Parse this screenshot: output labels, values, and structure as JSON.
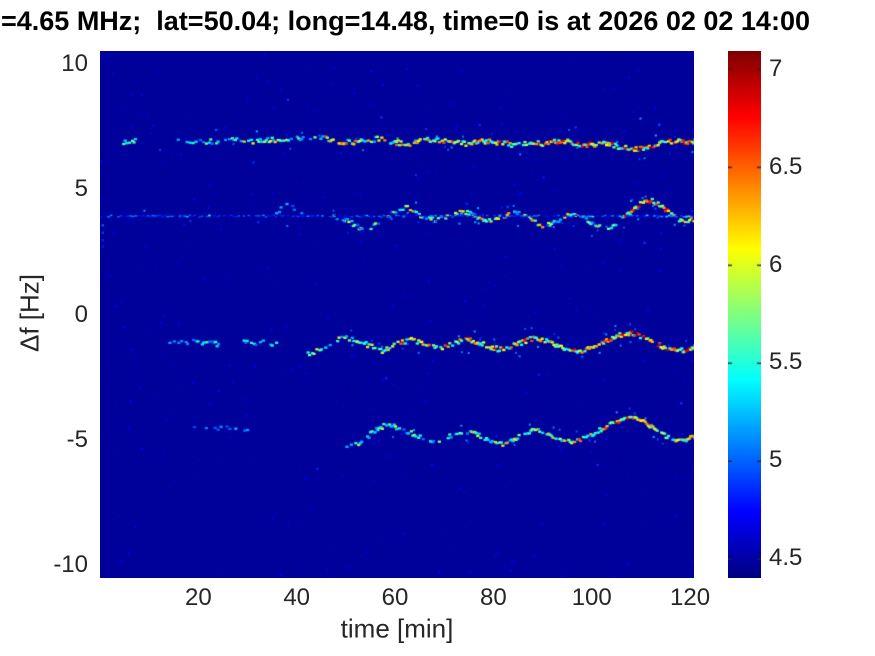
{
  "chart_data": {
    "type": "heatmap",
    "title": "=4.65 MHz;  lat=50.04; long=14.48, time=0 is at 2026 02 02 14:00",
    "xlabel": "time [min]",
    "ylabel": "Δf [Hz]",
    "xlim": [
      0,
      120.8
    ],
    "ylim": [
      -10.5,
      10.5
    ],
    "xticks": [
      20,
      40,
      60,
      80,
      100,
      120
    ],
    "yticks": [
      10,
      5,
      0,
      -5,
      -10
    ],
    "grid": false,
    "legend": "none",
    "colormap": "jet",
    "colorbar": {
      "vmin": 4.4,
      "vmax": 7.09,
      "ticks": [
        7,
        6.5,
        6,
        5.5,
        5,
        4.5
      ]
    },
    "background_value": 4.47,
    "traces": [
      {
        "name": "trace-plus7Hz",
        "step": 0.3,
        "jitter": 2.4,
        "dash": [
          3.2,
          2.3
        ],
        "points": [
          [
            4.5,
            6.85
          ],
          [
            6,
            6.9
          ],
          [
            8,
            6.9
          ],
          [
            16,
            6.95
          ],
          [
            18,
            6.85
          ],
          [
            23,
            6.9
          ],
          [
            26,
            6.95
          ],
          [
            30,
            6.9
          ],
          [
            34,
            6.95
          ],
          [
            38,
            7.0
          ],
          [
            42,
            7.05
          ],
          [
            45,
            7.08
          ],
          [
            48,
            6.9
          ],
          [
            51,
            6.85
          ],
          [
            54,
            6.95
          ],
          [
            57,
            7.0
          ],
          [
            60,
            6.85
          ],
          [
            63,
            6.8
          ],
          [
            66,
            6.95
          ],
          [
            69,
            6.95
          ],
          [
            72,
            6.85
          ],
          [
            75,
            6.8
          ],
          [
            78,
            6.9
          ],
          [
            81,
            6.85
          ],
          [
            84,
            6.75
          ],
          [
            87,
            6.85
          ],
          [
            90,
            6.8
          ],
          [
            93,
            6.9
          ],
          [
            96,
            6.85
          ],
          [
            99,
            6.75
          ],
          [
            102,
            6.8
          ],
          [
            105,
            6.7
          ],
          [
            108,
            6.6
          ],
          [
            111,
            6.65
          ],
          [
            113,
            6.8
          ],
          [
            115,
            6.9
          ],
          [
            117,
            6.9
          ],
          [
            119,
            6.85
          ],
          [
            120.8,
            6.9
          ]
        ],
        "segments": [
          [
            4.5,
            7,
            0.5,
            5.1,
            5.7
          ],
          [
            15,
            26,
            0.45,
            5.0,
            5.8
          ],
          [
            26,
            45,
            0.6,
            5.1,
            6.2
          ],
          [
            45,
            60,
            0.75,
            5.2,
            6.6
          ],
          [
            60,
            78,
            0.8,
            5.3,
            6.7
          ],
          [
            78,
            100,
            0.85,
            5.4,
            6.9
          ],
          [
            100,
            120.8,
            0.95,
            5.5,
            7.05
          ]
        ]
      },
      {
        "name": "trace-plus4Hz-wavy",
        "step": 0.3,
        "jitter": 2.2,
        "dash": [
          3.2,
          2.3
        ],
        "points": [
          [
            33,
            3.95
          ],
          [
            36,
            4.1
          ],
          [
            38,
            4.45
          ],
          [
            40,
            4.1
          ],
          [
            42,
            3.95
          ],
          [
            47,
            3.9
          ],
          [
            50,
            3.75
          ],
          [
            52,
            3.5
          ],
          [
            54,
            3.35
          ],
          [
            56,
            3.6
          ],
          [
            58,
            3.9
          ],
          [
            60,
            4.15
          ],
          [
            62,
            4.3
          ],
          [
            64,
            4.05
          ],
          [
            66,
            3.85
          ],
          [
            68,
            3.75
          ],
          [
            70,
            3.9
          ],
          [
            72,
            4.05
          ],
          [
            74,
            4.1
          ],
          [
            76,
            3.9
          ],
          [
            78,
            3.7
          ],
          [
            80,
            3.75
          ],
          [
            82,
            3.95
          ],
          [
            84,
            4.1
          ],
          [
            86,
            3.95
          ],
          [
            88,
            3.7
          ],
          [
            90,
            3.5
          ],
          [
            92,
            3.65
          ],
          [
            94,
            3.9
          ],
          [
            96,
            4.0
          ],
          [
            98,
            3.85
          ],
          [
            100,
            3.6
          ],
          [
            102,
            3.4
          ],
          [
            104,
            3.5
          ],
          [
            106,
            3.8
          ],
          [
            108,
            4.15
          ],
          [
            110,
            4.45
          ],
          [
            112,
            4.55
          ],
          [
            114,
            4.3
          ],
          [
            116,
            3.95
          ],
          [
            118,
            3.7
          ],
          [
            120.8,
            3.8
          ]
        ],
        "segments": [
          [
            35,
            41,
            0.4,
            4.9,
            5.5
          ],
          [
            47,
            58,
            0.55,
            5.0,
            6.0
          ],
          [
            58,
            72,
            0.6,
            5.1,
            6.3
          ],
          [
            72,
            95,
            0.65,
            5.1,
            6.4
          ],
          [
            95,
            106,
            0.7,
            5.2,
            6.5
          ],
          [
            106,
            116,
            0.9,
            5.5,
            7.0
          ],
          [
            116,
            120.8,
            0.8,
            5.3,
            6.6
          ]
        ]
      },
      {
        "name": "trace-minus1.2Hz",
        "step": 0.3,
        "jitter": 2.4,
        "dash": [
          3.2,
          2.3
        ],
        "points": [
          [
            13,
            -1.1
          ],
          [
            16,
            -1.15
          ],
          [
            19,
            -1.05
          ],
          [
            22,
            -1.15
          ],
          [
            25,
            -1.2
          ],
          [
            28,
            -1.1
          ],
          [
            31,
            -1.15
          ],
          [
            34,
            -1.1
          ],
          [
            37,
            -1.3
          ],
          [
            40,
            -1.45
          ],
          [
            43,
            -1.55
          ],
          [
            45,
            -1.35
          ],
          [
            47,
            -1.1
          ],
          [
            49,
            -0.95
          ],
          [
            51,
            -0.95
          ],
          [
            53,
            -1.1
          ],
          [
            55,
            -1.3
          ],
          [
            57,
            -1.45
          ],
          [
            59,
            -1.3
          ],
          [
            61,
            -1.1
          ],
          [
            63,
            -1.0
          ],
          [
            65,
            -1.1
          ],
          [
            67,
            -1.25
          ],
          [
            69,
            -1.3
          ],
          [
            71,
            -1.2
          ],
          [
            73,
            -1.05
          ],
          [
            75,
            -1.0
          ],
          [
            77,
            -1.15
          ],
          [
            79,
            -1.3
          ],
          [
            81,
            -1.4
          ],
          [
            83,
            -1.3
          ],
          [
            85,
            -1.15
          ],
          [
            87,
            -1.0
          ],
          [
            89,
            -0.95
          ],
          [
            91,
            -1.1
          ],
          [
            93,
            -1.3
          ],
          [
            95,
            -1.45
          ],
          [
            97,
            -1.5
          ],
          [
            99,
            -1.35
          ],
          [
            101,
            -1.15
          ],
          [
            103,
            -1.0
          ],
          [
            105,
            -0.85
          ],
          [
            107,
            -0.75
          ],
          [
            109,
            -0.8
          ],
          [
            111,
            -1.0
          ],
          [
            113,
            -1.2
          ],
          [
            115,
            -1.35
          ],
          [
            117,
            -1.45
          ],
          [
            119,
            -1.4
          ],
          [
            120.8,
            -1.3
          ]
        ],
        "segments": [
          [
            13,
            24,
            0.4,
            5.0,
            5.6
          ],
          [
            29,
            36,
            0.45,
            5.0,
            5.7
          ],
          [
            42,
            52,
            0.55,
            5.1,
            6.1
          ],
          [
            52,
            60,
            0.7,
            5.3,
            6.5
          ],
          [
            60,
            80,
            0.8,
            5.3,
            6.6
          ],
          [
            80,
            100,
            0.85,
            5.4,
            6.9
          ],
          [
            100,
            120.8,
            0.95,
            5.5,
            7.0
          ]
        ]
      },
      {
        "name": "trace-minus4.7Hz",
        "step": 0.3,
        "jitter": 2.2,
        "dash": [
          3.2,
          2.3
        ],
        "points": [
          [
            18,
            -4.55
          ],
          [
            21,
            -4.6
          ],
          [
            24,
            -4.5
          ],
          [
            29,
            -4.6
          ],
          [
            38,
            -4.6
          ],
          [
            40,
            -4.7
          ],
          [
            48,
            -5.35
          ],
          [
            50,
            -5.3
          ],
          [
            52,
            -5.2
          ],
          [
            54,
            -4.9
          ],
          [
            56,
            -4.55
          ],
          [
            58,
            -4.4
          ],
          [
            60,
            -4.5
          ],
          [
            62,
            -4.65
          ],
          [
            64,
            -4.8
          ],
          [
            66,
            -5.0
          ],
          [
            68,
            -5.1
          ],
          [
            70,
            -4.95
          ],
          [
            72,
            -4.75
          ],
          [
            74,
            -4.65
          ],
          [
            76,
            -4.75
          ],
          [
            78,
            -4.95
          ],
          [
            80,
            -5.15
          ],
          [
            82,
            -5.2
          ],
          [
            84,
            -5.0
          ],
          [
            86,
            -4.75
          ],
          [
            88,
            -4.6
          ],
          [
            90,
            -4.65
          ],
          [
            92,
            -4.85
          ],
          [
            94,
            -5.05
          ],
          [
            96,
            -5.1
          ],
          [
            98,
            -4.95
          ],
          [
            100,
            -4.75
          ],
          [
            102,
            -4.55
          ],
          [
            104,
            -4.35
          ],
          [
            106,
            -4.2
          ],
          [
            108,
            -4.15
          ],
          [
            110,
            -4.25
          ],
          [
            112,
            -4.5
          ],
          [
            114,
            -4.75
          ],
          [
            116,
            -4.95
          ],
          [
            118,
            -5.0
          ],
          [
            120.8,
            -4.9
          ]
        ],
        "segments": [
          [
            18,
            30,
            0.18,
            4.9,
            5.3
          ],
          [
            38,
            41,
            0.12,
            4.9,
            5.2
          ],
          [
            49,
            60,
            0.6,
            5.1,
            6.2
          ],
          [
            60,
            75,
            0.55,
            5.0,
            6.0
          ],
          [
            75,
            95,
            0.7,
            5.2,
            6.4
          ],
          [
            95,
            104,
            0.8,
            5.3,
            6.6
          ],
          [
            104,
            115,
            0.9,
            5.5,
            7.0
          ],
          [
            115,
            120.8,
            0.85,
            5.3,
            6.6
          ]
        ]
      },
      {
        "name": "carrier-line-plus3.9Hz",
        "step": 0.5,
        "jitter": 0.9,
        "dash": [
          2.5,
          1.5
        ],
        "points": [
          [
            0,
            3.92
          ],
          [
            120.8,
            3.92
          ]
        ],
        "segments": [
          [
            0,
            120.8,
            0.8,
            4.7,
            5.15
          ],
          [
            3,
            22,
            0.35,
            4.95,
            5.5
          ],
          [
            50,
            62,
            0.3,
            4.95,
            5.5
          ],
          [
            98,
            120.8,
            0.35,
            5.0,
            5.6
          ]
        ]
      }
    ],
    "specks": [
      [
        0.35,
        3.6,
        5.0
      ],
      [
        0.35,
        3.3,
        4.9
      ],
      [
        0.35,
        3.0,
        4.85
      ],
      [
        0.35,
        2.75,
        4.8
      ],
      [
        12,
        6.6,
        4.9
      ],
      [
        23.4,
        7.4,
        5.0
      ],
      [
        31,
        6.1,
        4.85
      ],
      [
        38,
        8.6,
        4.9
      ],
      [
        57,
        7.9,
        4.9
      ],
      [
        77,
        7.6,
        4.85
      ],
      [
        96.5,
        7.5,
        4.9
      ],
      [
        109.7,
        7.85,
        5.1
      ],
      [
        113.5,
        7.6,
        4.95
      ],
      [
        64,
        5.6,
        4.85
      ],
      [
        90,
        5.5,
        4.8
      ],
      [
        110.5,
        2.9,
        4.9
      ],
      [
        58,
        -2.5,
        4.85
      ],
      [
        89,
        -2.35,
        4.8
      ],
      [
        108.5,
        -3.9,
        4.9
      ],
      [
        44,
        -6.1,
        4.85
      ],
      [
        101,
        -5.95,
        4.85
      ],
      [
        118,
        -3.5,
        4.9
      ]
    ]
  },
  "colors": {
    "figure_background": "#ffffff",
    "tick_text": "#262626",
    "title_text": "#000000",
    "plot_min_navy": "#00008f",
    "colorbar_top_dark_red": "#7f0000"
  }
}
